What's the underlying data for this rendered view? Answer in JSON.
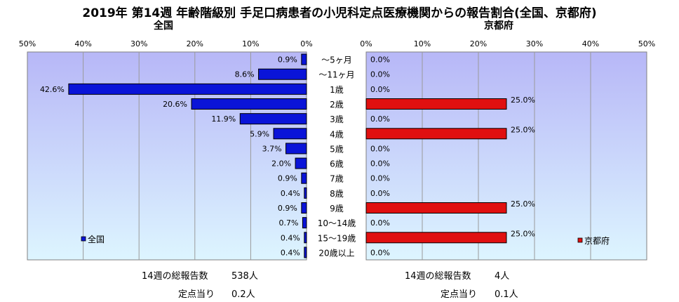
{
  "title": "2019年 第14週 年齢階級別 手足口病患者の小児科定点医療機関からの報告割合(全国、京都府)",
  "chart_data": {
    "type": "bar",
    "orientation": "horizontal",
    "categories": [
      "～5ヶ月",
      "～11ヶ月",
      "1歳",
      "2歳",
      "3歳",
      "4歳",
      "5歳",
      "6歳",
      "7歳",
      "8歳",
      "9歳",
      "10～14歳",
      "15～19歳",
      "20歳以上"
    ],
    "xlim": [
      0,
      50
    ],
    "ticks": [
      "0%",
      "10%",
      "20%",
      "30%",
      "40%",
      "50%"
    ],
    "grid": true,
    "panels": [
      {
        "title": "全国",
        "legend": "全国",
        "legend_position": "bottom-left",
        "color": "#0a14d8",
        "direction": "left",
        "values": [
          0.9,
          8.6,
          42.6,
          20.6,
          11.9,
          5.9,
          3.7,
          2.0,
          0.9,
          0.4,
          0.9,
          0.7,
          0.4,
          0.4
        ],
        "labels": [
          "0.9%",
          "8.6%",
          "42.6%",
          "20.6%",
          "11.9%",
          "5.9%",
          "3.7%",
          "2.0%",
          "0.9%",
          "0.4%",
          "0.9%",
          "0.7%",
          "0.4%",
          "0.4%"
        ]
      },
      {
        "title": "京都府",
        "legend": "京都府",
        "legend_position": "bottom-right",
        "color": "#e01010",
        "direction": "right",
        "values": [
          0,
          0,
          0,
          25,
          0,
          25,
          0,
          0,
          0,
          0,
          25,
          0,
          25,
          0
        ],
        "labels": [
          "0.0%",
          "0.0%",
          "0.0%",
          "25.0%",
          "0.0%",
          "25.0%",
          "0.0%",
          "0.0%",
          "0.0%",
          "0.0%",
          "25.0%",
          "0.0%",
          "25.0%",
          "0.0%"
        ]
      }
    ]
  },
  "footer": {
    "left": {
      "total_label": "14週の総報告数",
      "total_value": "538人",
      "per_label": "定点当り",
      "per_value": "0.2人"
    },
    "right": {
      "total_label": "14週の総報告数",
      "total_value": "4人",
      "per_label": "定点当り",
      "per_value": "0.1人"
    }
  }
}
